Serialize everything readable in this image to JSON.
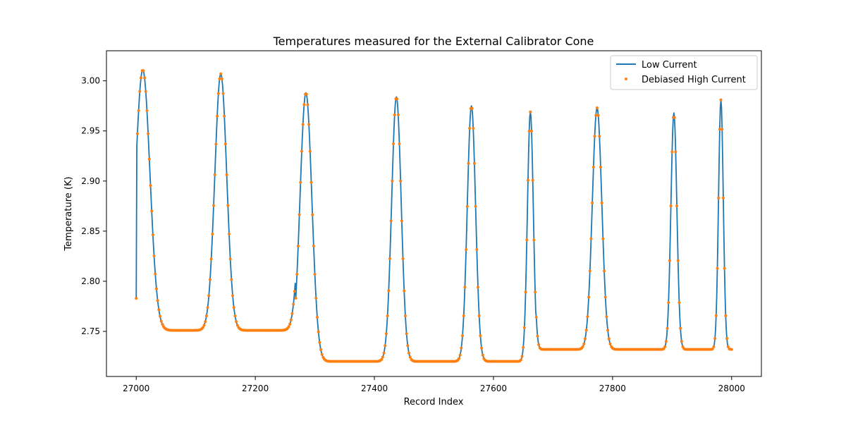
{
  "chart_data": {
    "type": "line",
    "title": "Temperatures measured for the External Calibrator Cone",
    "xlabel": "Record Index",
    "ylabel": "Temperature (K)",
    "xlim": [
      26950,
      28050
    ],
    "ylim": [
      2.705,
      3.03
    ],
    "xticks": [
      27000,
      27200,
      27400,
      27600,
      27800,
      28000
    ],
    "yticks": [
      2.75,
      2.8,
      2.85,
      2.9,
      2.95,
      3.0
    ],
    "xtick_labels": [
      "27000",
      "27200",
      "27400",
      "27600",
      "27800",
      "28000"
    ],
    "ytick_labels": [
      "2.75",
      "2.80",
      "2.85",
      "2.90",
      "2.95",
      "3.00"
    ],
    "grid": false,
    "legend": "top-right",
    "record_range": [
      27000,
      28000
    ],
    "plateaus": [
      {
        "start": 27000,
        "end": 27268,
        "level": 2.751
      },
      {
        "start": 27268,
        "end": 27672,
        "level": 2.72
      },
      {
        "start": 27672,
        "end": 28000,
        "level": 2.732
      }
    ],
    "peaks": [
      {
        "center": 27011,
        "peak": 3.011,
        "width": 12
      },
      {
        "center": 27142,
        "peak": 3.007,
        "width": 10
      },
      {
        "center": 27285,
        "peak": 2.988,
        "width": 10
      },
      {
        "center": 27437,
        "peak": 2.984,
        "width": 8
      },
      {
        "center": 27563,
        "peak": 2.975,
        "width": 7
      },
      {
        "center": 27662,
        "peak": 2.969,
        "width": 5
      },
      {
        "center": 27774,
        "peak": 2.973,
        "width": 8
      },
      {
        "center": 27903,
        "peak": 2.968,
        "width": 5
      },
      {
        "center": 27982,
        "peak": 2.981,
        "width": 4
      }
    ],
    "series": [
      {
        "name": "Low Current",
        "kind": "line",
        "color": "#1f77b4"
      },
      {
        "name": "Debiased High Current",
        "kind": "scatter",
        "color": "#ff7f0e"
      }
    ]
  }
}
